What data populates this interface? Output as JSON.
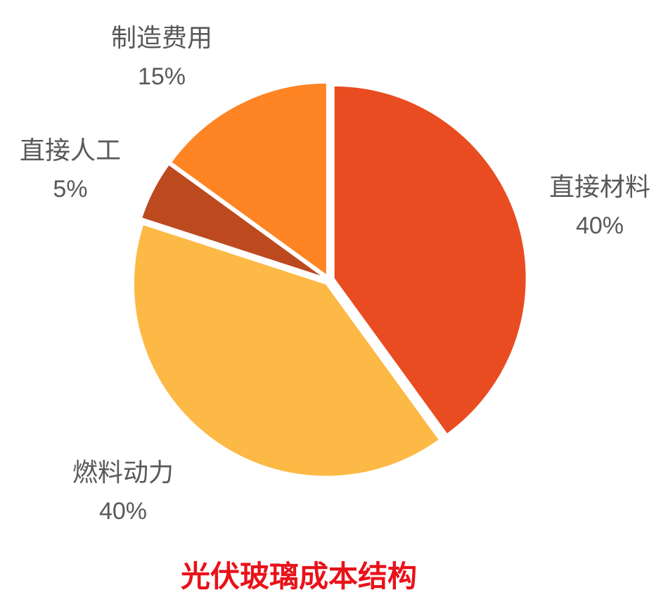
{
  "chart_data": {
    "type": "pie",
    "title": "光伏玻璃成本结构",
    "slices": [
      {
        "label": "直接材料",
        "value": 40,
        "value_label": "40%",
        "color": "#e84c20"
      },
      {
        "label": "燃料动力",
        "value": 40,
        "value_label": "40%",
        "color": "#fdb945"
      },
      {
        "label": "直接人工",
        "value": 5,
        "value_label": "5%",
        "color": "#bd4a1f"
      },
      {
        "label": "制造费用",
        "value": 15,
        "value_label": "15%",
        "color": "#fe8424"
      }
    ],
    "label_color": "#595959",
    "title_color": "#e8121a",
    "start_angle": "12 o'clock",
    "direction": "clockwise",
    "exploded": true
  }
}
